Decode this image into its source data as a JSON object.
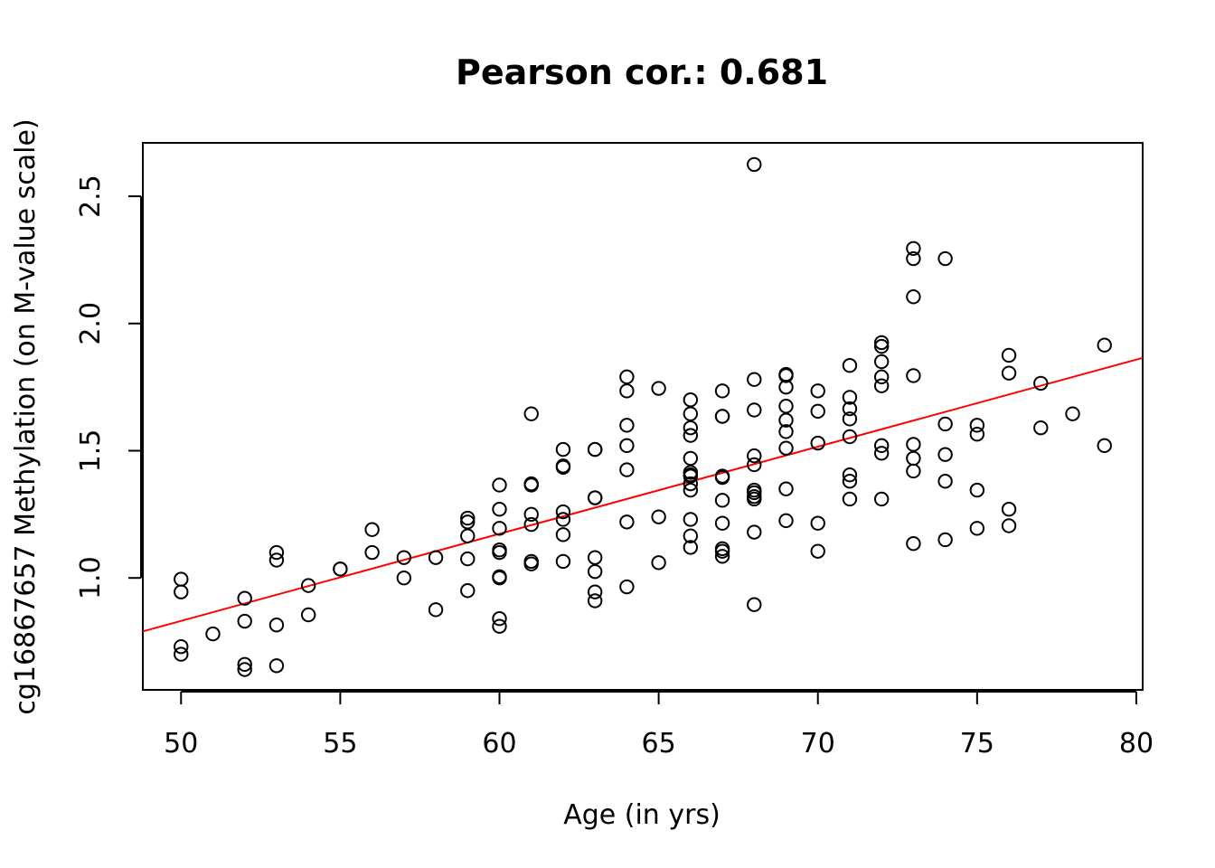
{
  "chart_data": {
    "type": "scatter",
    "title": "Pearson cor.: 0.681",
    "xlabel": "Age (in yrs)",
    "ylabel": "cg16867657 Methylation (on M-value scale)",
    "xlim": [
      48.8,
      80.2
    ],
    "ylim": [
      0.56,
      2.71
    ],
    "xticks": [
      50,
      55,
      60,
      65,
      70,
      75,
      80
    ],
    "yticks": [
      1.0,
      1.5,
      2.0,
      2.5
    ],
    "xtick_labels": [
      "50",
      "55",
      "60",
      "65",
      "70",
      "75",
      "80"
    ],
    "ytick_labels": [
      "1.0",
      "1.5",
      "2.0",
      "2.5"
    ],
    "grid": false,
    "legend": "none",
    "point_color": "#000000",
    "fit_line_color": "#ff0000",
    "fit_line": {
      "x": [
        48.8,
        80.2
      ],
      "y": [
        0.79,
        1.865
      ]
    },
    "points": [
      [
        50,
        0.995
      ],
      [
        50,
        0.945
      ],
      [
        50,
        0.73
      ],
      [
        50,
        0.7
      ],
      [
        51,
        0.78
      ],
      [
        52,
        0.92
      ],
      [
        52,
        0.83
      ],
      [
        52,
        0.66
      ],
      [
        52,
        0.64
      ],
      [
        53,
        1.1
      ],
      [
        53,
        1.07
      ],
      [
        53,
        0.815
      ],
      [
        53,
        0.655
      ],
      [
        54,
        0.97
      ],
      [
        54,
        0.855
      ],
      [
        55,
        1.035
      ],
      [
        55,
        1.035
      ],
      [
        56,
        1.19
      ],
      [
        56,
        1.1
      ],
      [
        57,
        1.08
      ],
      [
        57,
        1.0
      ],
      [
        58,
        1.08
      ],
      [
        58,
        0.875
      ],
      [
        59,
        1.235
      ],
      [
        59,
        1.22
      ],
      [
        59,
        1.165
      ],
      [
        59,
        1.075
      ],
      [
        59,
        0.95
      ],
      [
        60,
        1.365
      ],
      [
        60,
        1.27
      ],
      [
        60,
        1.195
      ],
      [
        60,
        1.11
      ],
      [
        60,
        1.1
      ],
      [
        60,
        1.005
      ],
      [
        60,
        1.0
      ],
      [
        60,
        0.84
      ],
      [
        60,
        0.81
      ],
      [
        61,
        1.645
      ],
      [
        61,
        1.37
      ],
      [
        61,
        1.365
      ],
      [
        61,
        1.25
      ],
      [
        61,
        1.21
      ],
      [
        61,
        1.065
      ],
      [
        61,
        1.055
      ],
      [
        62,
        1.505
      ],
      [
        62,
        1.44
      ],
      [
        62,
        1.435
      ],
      [
        62,
        1.26
      ],
      [
        62,
        1.23
      ],
      [
        62,
        1.17
      ],
      [
        62,
        1.065
      ],
      [
        63,
        1.505
      ],
      [
        63,
        1.505
      ],
      [
        63,
        1.315
      ],
      [
        63,
        1.315
      ],
      [
        63,
        1.08
      ],
      [
        63,
        1.025
      ],
      [
        63,
        0.945
      ],
      [
        63,
        0.91
      ],
      [
        64,
        1.79
      ],
      [
        64,
        1.735
      ],
      [
        64,
        1.6
      ],
      [
        64,
        1.52
      ],
      [
        64,
        1.425
      ],
      [
        64,
        1.22
      ],
      [
        64,
        0.965
      ],
      [
        65,
        1.745
      ],
      [
        65,
        1.24
      ],
      [
        65,
        1.06
      ],
      [
        66,
        1.7
      ],
      [
        66,
        1.645
      ],
      [
        66,
        1.59
      ],
      [
        66,
        1.56
      ],
      [
        66,
        1.47
      ],
      [
        66,
        1.415
      ],
      [
        66,
        1.405
      ],
      [
        66,
        1.4
      ],
      [
        66,
        1.37
      ],
      [
        66,
        1.345
      ],
      [
        66,
        1.23
      ],
      [
        66,
        1.165
      ],
      [
        66,
        1.12
      ],
      [
        67,
        1.735
      ],
      [
        67,
        1.635
      ],
      [
        67,
        1.635
      ],
      [
        67,
        1.4
      ],
      [
        67,
        1.395
      ],
      [
        67,
        1.305
      ],
      [
        67,
        1.215
      ],
      [
        67,
        1.115
      ],
      [
        67,
        1.105
      ],
      [
        67,
        1.085
      ],
      [
        68,
        2.625
      ],
      [
        68,
        1.78
      ],
      [
        68,
        1.66
      ],
      [
        68,
        1.48
      ],
      [
        68,
        1.445
      ],
      [
        68,
        1.345
      ],
      [
        68,
        1.335
      ],
      [
        68,
        1.32
      ],
      [
        68,
        1.31
      ],
      [
        68,
        1.18
      ],
      [
        68,
        0.895
      ],
      [
        69,
        1.8
      ],
      [
        69,
        1.795
      ],
      [
        69,
        1.75
      ],
      [
        69,
        1.675
      ],
      [
        69,
        1.62
      ],
      [
        69,
        1.575
      ],
      [
        69,
        1.51
      ],
      [
        69,
        1.35
      ],
      [
        69,
        1.225
      ],
      [
        70,
        1.735
      ],
      [
        70,
        1.655
      ],
      [
        70,
        1.53
      ],
      [
        70,
        1.215
      ],
      [
        70,
        1.105
      ],
      [
        71,
        1.835
      ],
      [
        71,
        1.71
      ],
      [
        71,
        1.665
      ],
      [
        71,
        1.625
      ],
      [
        71,
        1.555
      ],
      [
        71,
        1.405
      ],
      [
        71,
        1.38
      ],
      [
        71,
        1.31
      ],
      [
        72,
        1.925
      ],
      [
        72,
        1.91
      ],
      [
        72,
        1.85
      ],
      [
        72,
        1.79
      ],
      [
        72,
        1.755
      ],
      [
        72,
        1.52
      ],
      [
        72,
        1.49
      ],
      [
        72,
        1.31
      ],
      [
        73,
        2.295
      ],
      [
        73,
        2.255
      ],
      [
        73,
        2.105
      ],
      [
        73,
        1.795
      ],
      [
        73,
        1.525
      ],
      [
        73,
        1.47
      ],
      [
        73,
        1.42
      ],
      [
        73,
        1.135
      ],
      [
        74,
        2.255
      ],
      [
        74,
        1.605
      ],
      [
        74,
        1.485
      ],
      [
        74,
        1.38
      ],
      [
        74,
        1.15
      ],
      [
        75,
        1.6
      ],
      [
        75,
        1.565
      ],
      [
        75,
        1.345
      ],
      [
        75,
        1.195
      ],
      [
        76,
        1.875
      ],
      [
        76,
        1.805
      ],
      [
        76,
        1.27
      ],
      [
        76,
        1.205
      ],
      [
        77,
        1.765
      ],
      [
        77,
        1.59
      ],
      [
        78,
        1.645
      ],
      [
        79,
        1.915
      ],
      [
        79,
        1.52
      ]
    ]
  }
}
